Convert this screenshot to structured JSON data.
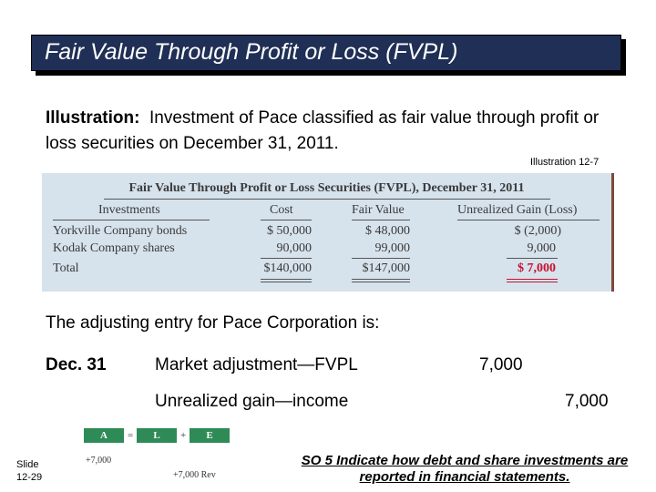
{
  "slide_title": "Fair Value Through Profit or Loss (FVPL)",
  "illustration": {
    "label": "Illustration:",
    "text": "Investment of Pace classified as fair value through profit or loss securities on December 31, 2011.",
    "ref": "Illustration 12-7"
  },
  "table": {
    "title": "Fair Value Through Profit or Loss Securities (FVPL), December 31, 2011",
    "headers": [
      "Investments",
      "Cost",
      "Fair Value",
      "Unrealized Gain (Loss)"
    ],
    "rows": [
      {
        "name": "Yorkville Company bonds",
        "cost": "$  50,000",
        "fair_value": "$  48,000",
        "gain": "$  (2,000)"
      },
      {
        "name": "Kodak Company shares",
        "cost": "90,000",
        "fair_value": "99,000",
        "gain": "9,000"
      },
      {
        "name": "Total",
        "cost": "$140,000",
        "fair_value": "$147,000",
        "gain": "$   7,000"
      }
    ],
    "highlight_color": "#c8102e"
  },
  "entry": {
    "intro": "The adjusting entry for Pace Corporation is:",
    "date": "Dec. 31",
    "debit_account": "Market adjustment—FVPL",
    "debit_amount": "7,000",
    "credit_account": "Unrealized gain—income",
    "credit_amount": "7,000"
  },
  "equation": {
    "a": "A",
    "eq": "=",
    "l": "L",
    "plus": "+",
    "e": "E",
    "a_value": "+7,000",
    "e_value": "+7,000 Rev"
  },
  "footer": {
    "slide_label": "Slide",
    "slide_number": "12-29",
    "objective": "SO 5  Indicate how debt and share investments are reported in financial statements."
  }
}
